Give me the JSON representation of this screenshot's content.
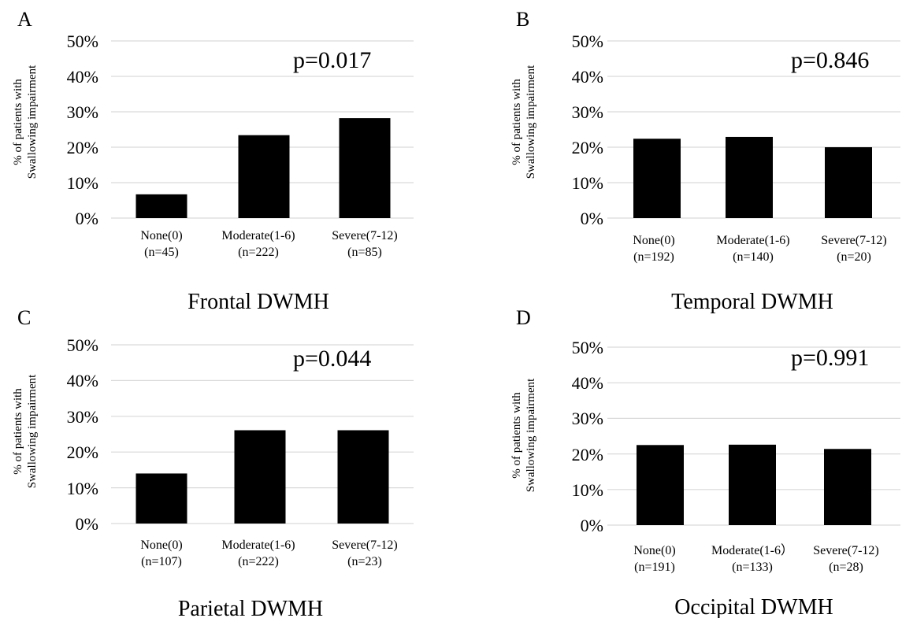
{
  "figure": {
    "panels": [
      {
        "letter": "A",
        "ylabel_line1": "% of patients with",
        "ylabel_line2": "Swallowing impairment",
        "pvalue": "p=0.017",
        "title": "Frontal DWMH",
        "yticks": [
          "0%",
          "10%",
          "20%",
          "30%",
          "40%",
          "50%"
        ],
        "categories": [
          {
            "line1": "None(0)",
            "line2": "(n=45)"
          },
          {
            "line1": "Moderate(1-6)",
            "line2": "(n=222)"
          },
          {
            "line1": "Severe(7-12)",
            "line2": "(n=85)"
          }
        ]
      },
      {
        "letter": "B",
        "ylabel_line1": "% of patients with",
        "ylabel_line2": "Swallowing impairment",
        "pvalue": "p=0.846",
        "title": "Temporal DWMH",
        "yticks": [
          "0%",
          "10%",
          "20%",
          "30%",
          "40%",
          "50%"
        ],
        "categories": [
          {
            "line1": "None(0)",
            "line2": "(n=192)"
          },
          {
            "line1": "Moderate(1-6)",
            "line2": "(n=140)"
          },
          {
            "line1": "Severe(7-12)",
            "line2": "(n=20)"
          }
        ]
      },
      {
        "letter": "C",
        "ylabel_line1": "% of patients with",
        "ylabel_line2": "Swallowing impairment",
        "pvalue": "p=0.044",
        "title": "Parietal DWMH",
        "yticks": [
          "0%",
          "10%",
          "20%",
          "30%",
          "40%",
          "50%"
        ],
        "categories": [
          {
            "line1": "None(0)",
            "line2": "(n=107)"
          },
          {
            "line1": "Moderate(1-6)",
            "line2": "(n=222)"
          },
          {
            "line1": "Severe(7-12)",
            "line2": "(n=23)"
          }
        ]
      },
      {
        "letter": "D",
        "ylabel_line1": "% of patients with",
        "ylabel_line2": "Swallowing impairment",
        "pvalue": "p=0.991",
        "title": "Occipital DWMH",
        "yticks": [
          "0%",
          "10%",
          "20%",
          "30%",
          "40%",
          "50%"
        ],
        "categories": [
          {
            "line1": "None(0)",
            "line2": "(n=191)"
          },
          {
            "line1": "Moderate(1-6）",
            "line2": "(n=133)"
          },
          {
            "line1": "Severe(7-12)",
            "line2": "(n=28)"
          }
        ]
      }
    ]
  },
  "chart_data": [
    {
      "type": "bar",
      "title": "Frontal DWMH",
      "ylabel": "% of patients with Swallowing impairment",
      "categories": [
        "None(0) (n=45)",
        "Moderate(1-6) (n=222)",
        "Severe(7-12) (n=85)"
      ],
      "values": [
        6.7,
        23.4,
        28.2
      ],
      "ylim": [
        0,
        50
      ],
      "annotation": "p=0.017",
      "grid": true,
      "bar_color": "#000000"
    },
    {
      "type": "bar",
      "title": "Temporal DWMH",
      "ylabel": "% of patients with Swallowing impairment",
      "categories": [
        "None(0) (n=192)",
        "Moderate(1-6) (n=140)",
        "Severe(7-12) (n=20)"
      ],
      "values": [
        22.4,
        22.9,
        20.0
      ],
      "ylim": [
        0,
        50
      ],
      "annotation": "p=0.846",
      "grid": true,
      "bar_color": "#000000"
    },
    {
      "type": "bar",
      "title": "Parietal DWMH",
      "ylabel": "% of patients with Swallowing impairment",
      "categories": [
        "None(0) (n=107)",
        "Moderate(1-6) (n=222)",
        "Severe(7-12) (n=23)"
      ],
      "values": [
        14.0,
        26.1,
        26.1
      ],
      "ylim": [
        0,
        50
      ],
      "annotation": "p=0.044",
      "grid": true,
      "bar_color": "#000000"
    },
    {
      "type": "bar",
      "title": "Occipital DWMH",
      "ylabel": "% of patients with Swallowing impairment",
      "categories": [
        "None(0) (n=191)",
        "Moderate(1-6） (n=133)",
        "Severe(7-12) (n=28)"
      ],
      "values": [
        22.5,
        22.6,
        21.4
      ],
      "ylim": [
        0,
        50
      ],
      "annotation": "p=0.991",
      "grid": true,
      "bar_color": "#000000"
    }
  ]
}
